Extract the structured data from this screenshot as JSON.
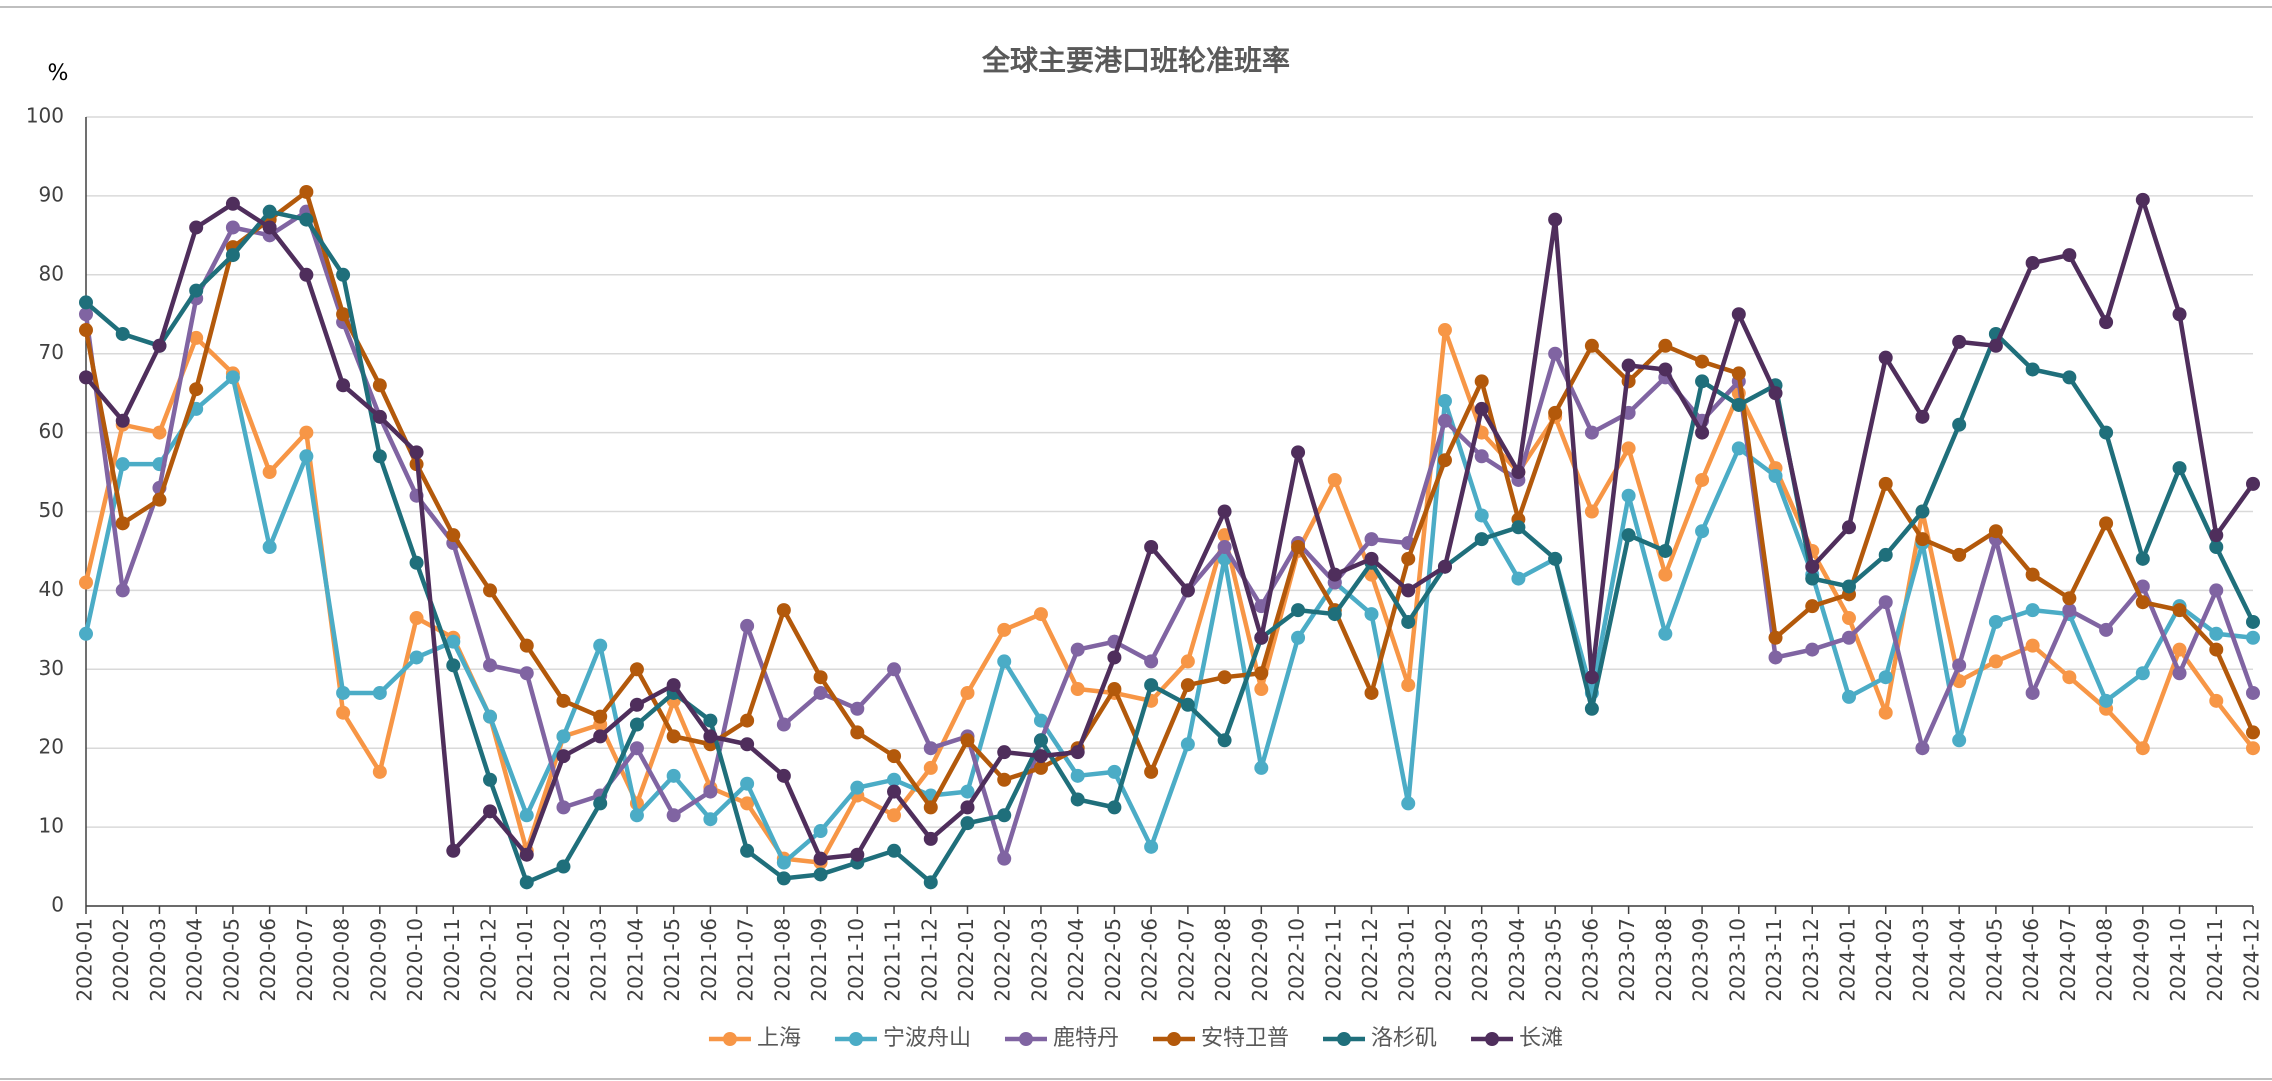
{
  "chart_data": {
    "type": "line",
    "title": "全球主要港口班轮准班率",
    "y_label": "%",
    "categories": [
      "2020-01",
      "2020-02",
      "2020-03",
      "2020-04",
      "2020-05",
      "2020-06",
      "2020-07",
      "2020-08",
      "2020-09",
      "2020-10",
      "2020-11",
      "2020-12",
      "2021-01",
      "2021-02",
      "2021-03",
      "2021-04",
      "2021-05",
      "2021-06",
      "2021-07",
      "2021-08",
      "2021-09",
      "2021-10",
      "2021-11",
      "2021-12",
      "2022-01",
      "2022-02",
      "2022-03",
      "2022-04",
      "2022-05",
      "2022-06",
      "2022-07",
      "2022-08",
      "2022-09",
      "2022-10",
      "2022-11",
      "2022-12",
      "2023-01",
      "2023-02",
      "2023-03",
      "2023-04",
      "2023-05",
      "2023-06",
      "2023-07",
      "2023-08",
      "2023-09",
      "2023-10",
      "2023-11",
      "2023-12",
      "2024-01",
      "2024-02",
      "2024-03",
      "2024-04",
      "2024-05",
      "2024-06",
      "2024-07",
      "2024-08",
      "2024-09",
      "2024-10",
      "2024-11",
      "2024-12"
    ],
    "series": [
      {
        "name": "上海",
        "color": "#f79646",
        "values": [
          41,
          61,
          60,
          72,
          67.5,
          55,
          60,
          24.5,
          17,
          36.5,
          34,
          24,
          7,
          21.5,
          23,
          13,
          26,
          15,
          13,
          6,
          5.5,
          14,
          11.5,
          17.5,
          27,
          35,
          37,
          27.5,
          27,
          26,
          31,
          47,
          27.5,
          45,
          54,
          42,
          28,
          73,
          60,
          55,
          62,
          50,
          58,
          42,
          54,
          65,
          55.5,
          45,
          36.5,
          24.5,
          50,
          28.5,
          31,
          33,
          29,
          25,
          20,
          32.5,
          26,
          20
        ]
      },
      {
        "name": "宁波舟山",
        "color": "#4bacc6",
        "values": [
          34.5,
          56,
          56,
          63,
          67,
          45.5,
          57,
          27,
          27,
          31.5,
          33.5,
          24,
          11.5,
          21.5,
          33,
          11.5,
          16.5,
          11,
          15.5,
          5.5,
          9.5,
          15,
          16,
          14,
          14.5,
          31,
          23.5,
          16.5,
          17,
          7.5,
          20.5,
          44,
          17.5,
          34,
          41,
          37,
          13,
          64,
          49.5,
          41.5,
          44,
          27,
          52,
          34.5,
          47.5,
          58,
          54.5,
          42,
          26.5,
          29,
          46,
          21,
          36,
          37.5,
          37,
          26,
          29.5,
          38,
          34.5,
          34
        ]
      },
      {
        "name": "鹿特丹",
        "color": "#8064a2",
        "values": [
          75,
          40,
          53,
          77,
          86,
          85,
          88,
          74,
          62,
          52,
          46,
          30.5,
          29.5,
          12.5,
          14,
          20,
          11.5,
          14.5,
          35.5,
          23,
          27,
          25,
          30,
          20,
          21.5,
          6,
          21,
          32.5,
          33.5,
          31,
          40,
          45.5,
          38,
          46,
          41,
          46.5,
          46,
          61.5,
          57,
          54,
          70,
          60,
          62.5,
          67,
          61.5,
          66.5,
          31.5,
          32.5,
          34,
          38.5,
          20,
          30.5,
          46.5,
          27,
          37.5,
          35,
          40.5,
          29.5,
          40,
          27
        ]
      },
      {
        "name": "安特卫普",
        "color": "#b3590b",
        "values": [
          73,
          48.5,
          51.5,
          65.5,
          83.5,
          87,
          90.5,
          75,
          66,
          56,
          47,
          40,
          33,
          26,
          24,
          30,
          21.5,
          20.5,
          23.5,
          37.5,
          29,
          22,
          19,
          12.5,
          21,
          16,
          17.5,
          20,
          27.5,
          17,
          28,
          29,
          29.5,
          45.5,
          37.5,
          27,
          44,
          56.5,
          66.5,
          49,
          62.5,
          71,
          66.5,
          71,
          69,
          67.5,
          34,
          38,
          39.5,
          53.5,
          46.5,
          44.5,
          47.5,
          42,
          39,
          48.5,
          38.5,
          37.5,
          32.5,
          22
        ]
      },
      {
        "name": "洛杉矶",
        "color": "#1f6f7b",
        "values": [
          76.5,
          72.5,
          71,
          78,
          82.5,
          88,
          87,
          80,
          57,
          43.5,
          30.5,
          16,
          3,
          5,
          13,
          23,
          27,
          23.5,
          7,
          3.5,
          4,
          5.5,
          7,
          3,
          10.5,
          11.5,
          21,
          13.5,
          12.5,
          28,
          25.5,
          21,
          34,
          37.5,
          37,
          43.5,
          36,
          43,
          46.5,
          48,
          44,
          25,
          47,
          45,
          66.5,
          63.5,
          66,
          41.5,
          40.5,
          44.5,
          50,
          61,
          72.5,
          68,
          67,
          60,
          44,
          55.5,
          45.5,
          36
        ]
      },
      {
        "name": "长滩",
        "color": "#4f2e5c",
        "values": [
          67,
          61.5,
          71,
          86,
          89,
          86,
          80,
          66,
          62,
          57.5,
          7,
          12,
          6.5,
          19,
          21.5,
          25.5,
          28,
          21.5,
          20.5,
          16.5,
          6,
          6.5,
          14.5,
          8.5,
          12.5,
          19.5,
          19,
          19.5,
          31.5,
          45.5,
          40,
          50,
          34,
          57.5,
          42,
          44,
          40,
          43,
          63,
          55,
          87,
          29,
          68.5,
          68,
          60,
          75,
          65,
          43,
          48,
          69.5,
          62,
          71.5,
          71,
          81.5,
          82.5,
          74,
          89.5,
          75,
          47,
          53.5
        ]
      }
    ],
    "ylim": [
      0,
      100
    ],
    "yticks": [
      0,
      10,
      20,
      30,
      40,
      50,
      60,
      70,
      80,
      90,
      100
    ],
    "grid": true
  }
}
